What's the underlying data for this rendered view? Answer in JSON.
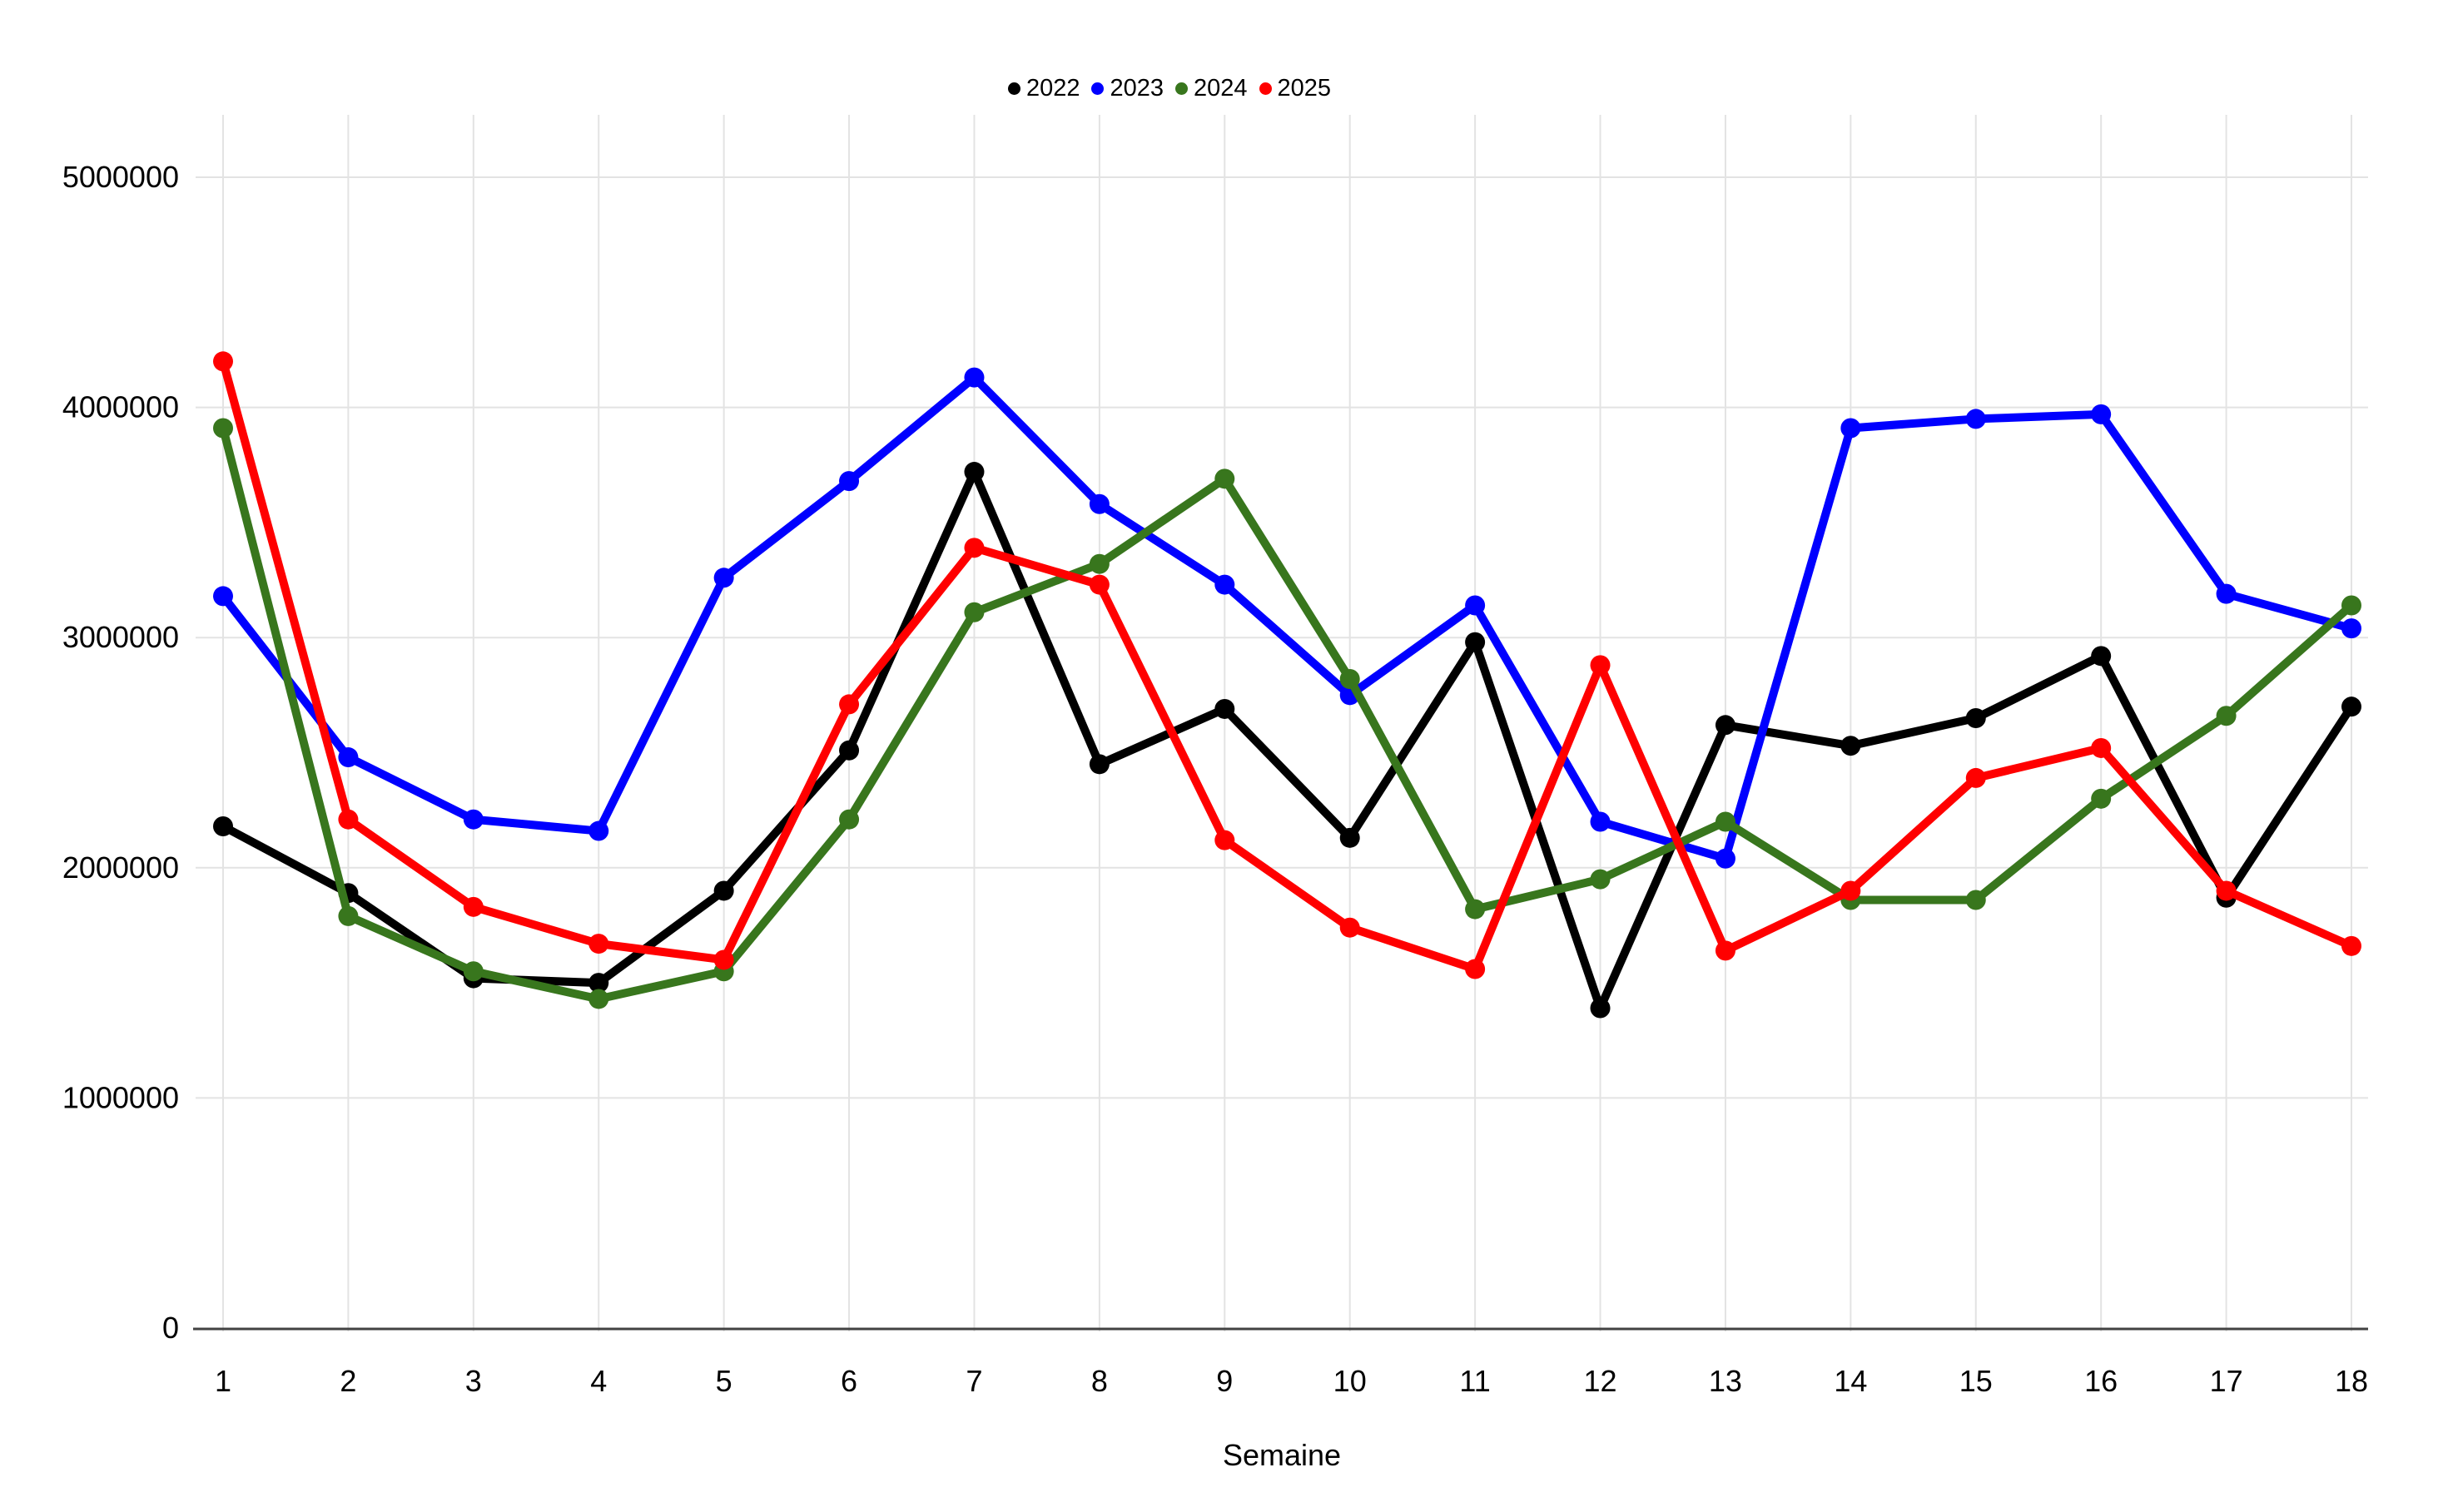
{
  "page": {
    "background": "#ffffff"
  },
  "chart_data": {
    "type": "line",
    "title": "",
    "xlabel": "Semaine",
    "ylabel": "",
    "x": [
      1,
      2,
      3,
      4,
      5,
      6,
      7,
      8,
      9,
      10,
      11,
      12,
      13,
      14,
      15,
      16,
      17,
      18
    ],
    "x_tick_labels": [
      "1",
      "2",
      "3",
      "4",
      "5",
      "6",
      "7",
      "8",
      "9",
      "10",
      "11",
      "12",
      "13",
      "14",
      "15",
      "16",
      "17",
      "18"
    ],
    "ylim": [
      0,
      5000000
    ],
    "y_ticks": [
      0,
      1000000,
      2000000,
      3000000,
      4000000,
      5000000
    ],
    "y_tick_labels": [
      "0",
      "1000000",
      "2000000",
      "3000000",
      "4000000",
      "5000000"
    ],
    "grid": true,
    "legend_position": "top",
    "series": [
      {
        "name": "2022",
        "color": "#000000",
        "values": [
          2180000,
          1890000,
          1520000,
          1500000,
          1900000,
          2510000,
          3720000,
          2450000,
          2690000,
          2130000,
          2980000,
          1390000,
          2620000,
          2530000,
          2650000,
          2920000,
          1870000,
          2700000
        ]
      },
      {
        "name": "2023",
        "color": "#0000ff",
        "values": [
          3180000,
          2480000,
          2210000,
          2160000,
          3260000,
          3680000,
          4130000,
          3580000,
          3230000,
          2750000,
          3140000,
          2200000,
          2040000,
          3910000,
          3950000,
          3970000,
          3190000,
          3040000
        ]
      },
      {
        "name": "2024",
        "color": "#38761d",
        "values": [
          3910000,
          1790000,
          1550000,
          1430000,
          1550000,
          2210000,
          3110000,
          3320000,
          3690000,
          2820000,
          1820000,
          1950000,
          2200000,
          1860000,
          1860000,
          2300000,
          2660000,
          3140000
        ]
      },
      {
        "name": "2025",
        "color": "#ff0000",
        "values": [
          4200000,
          2210000,
          1830000,
          1670000,
          1600000,
          2710000,
          3390000,
          3230000,
          2120000,
          1740000,
          1560000,
          2880000,
          1640000,
          1900000,
          2390000,
          2520000,
          1900000,
          1660000
        ]
      }
    ],
    "colors": {
      "grid": "#e3e3e3",
      "axis": "#424242",
      "tick_text": "#000000"
    }
  }
}
